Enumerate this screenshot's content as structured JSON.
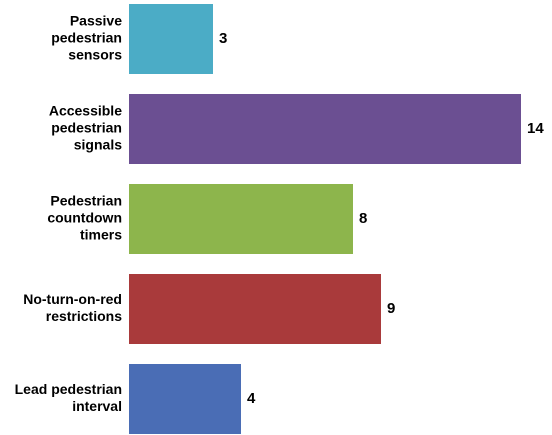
{
  "chart_data": {
    "type": "bar",
    "orientation": "horizontal",
    "categories": [
      "Passive\npedestrian\nsensors",
      "Accessible\npedestrian\nsignals",
      "Pedestrian\ncountdown\ntimers",
      "No-turn-on-red\nrestrictions",
      "Lead pedestrian\ninterval"
    ],
    "values": [
      3,
      14,
      8,
      9,
      4
    ],
    "colors": [
      "#4bacc6",
      "#6b4f92",
      "#8db54c",
      "#a93a3b",
      "#4a6db5"
    ]
  }
}
